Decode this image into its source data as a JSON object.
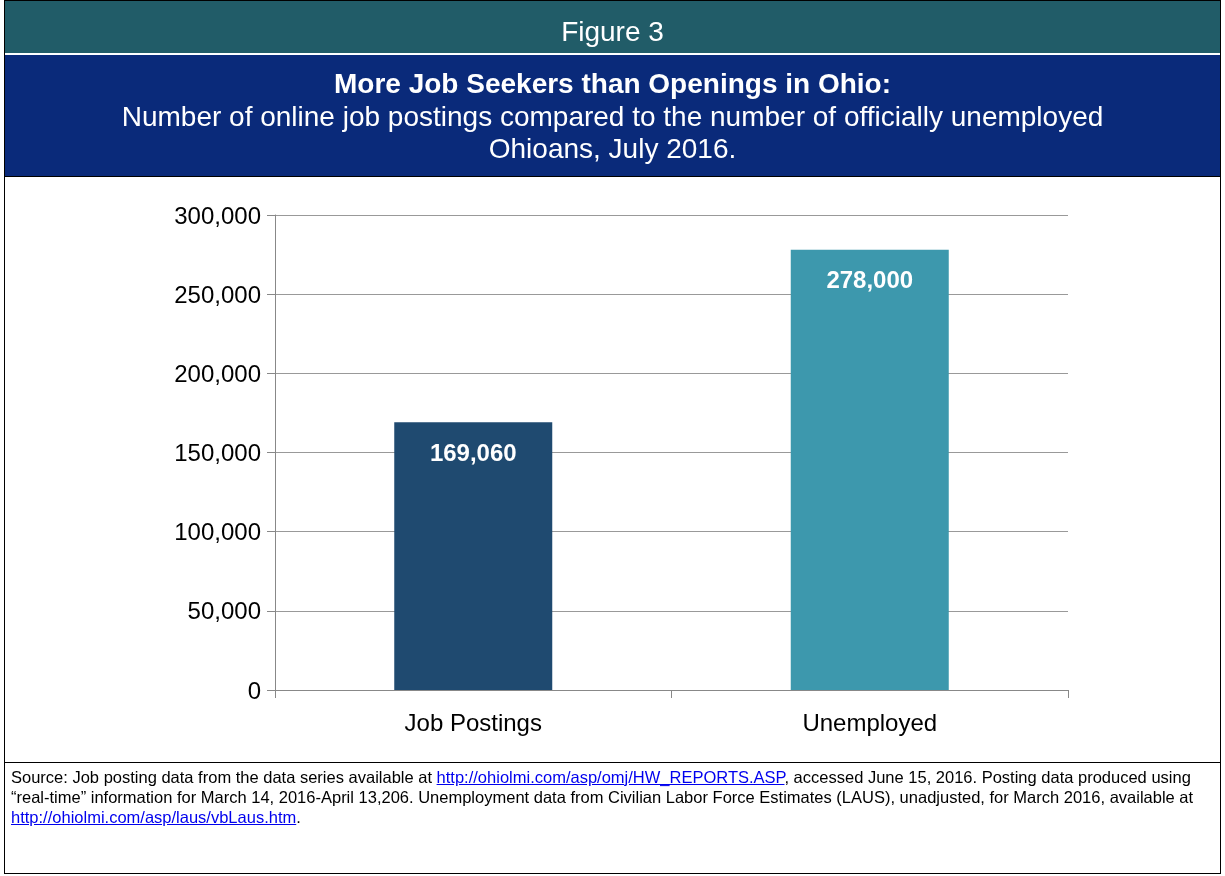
{
  "chart_data": {
    "type": "bar",
    "title": "More Job Seekers than Openings in Ohio:",
    "subtitle": "Number of online job postings compared to the number of officially unemployed Ohioans, July 2016.",
    "categories": [
      "Job Postings",
      "Unemployed"
    ],
    "values": [
      169060,
      278000
    ],
    "value_labels": [
      "169,060",
      "278,000"
    ],
    "colors": [
      "#1f4a70",
      "#3d98ad"
    ],
    "ylim": [
      0,
      300000
    ],
    "yticks": [
      0,
      {
        "value": 50000,
        "label": "50,000"
      },
      {
        "value": 100000,
        "label": "100,000"
      },
      {
        "value": 150000,
        "label": "150,000"
      },
      {
        "value": 200000,
        "label": "200,000"
      },
      {
        "value": 250000,
        "label": "250,000"
      },
      {
        "value": 300000,
        "label": "300,000"
      }
    ],
    "grid": "y",
    "annotations": [
      "Figure 3",
      "Source: Job posting data from the data series available at http://ohiolmi.com/asp/omj/HW_REPORTS.ASP, accessed June 15, 2016. Posting data produced using “real-time” information for March 14, 2016-April 13,206. Unemployment data from Civilian Labor Force Estimates (LAUS), unadjusted, for March 2016, available at http://ohiolmi.com/asp/laus/vbLaus.htm."
    ]
  }
}
